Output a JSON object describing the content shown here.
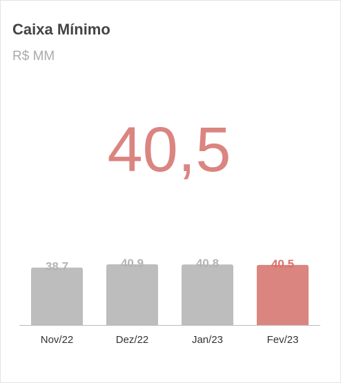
{
  "chart_data": {
    "type": "bar",
    "title": "Caixa Mínimo",
    "subtitle": "R$ MM",
    "kpi": "40,5",
    "categories": [
      "Nov/22",
      "Dez/22",
      "Jan/23",
      "Fev/23"
    ],
    "values": [
      38.7,
      40.9,
      40.8,
      40.5
    ],
    "colors": [
      "#bdbdbd",
      "#bdbdbd",
      "#bdbdbd",
      "#db8580"
    ],
    "label_colors": [
      "#b3b3b3",
      "#b3b3b3",
      "#b3b3b3",
      "#d9716b"
    ]
  }
}
